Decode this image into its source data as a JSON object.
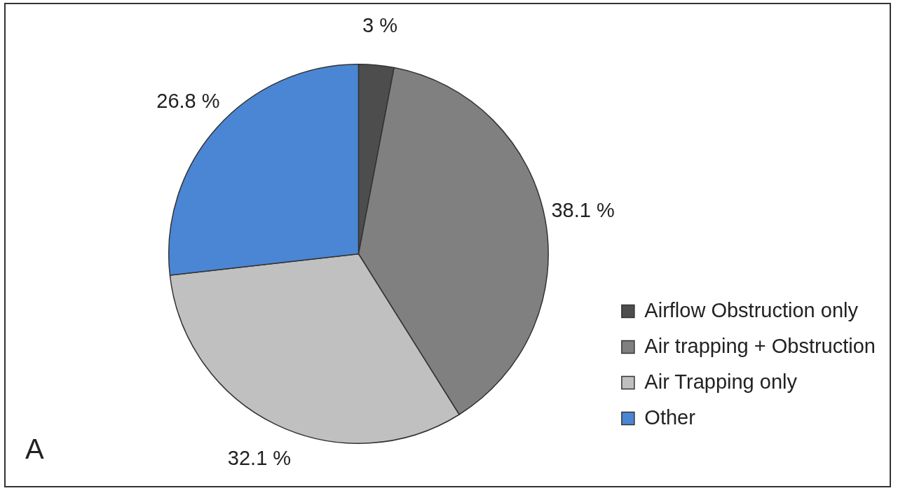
{
  "chart_data": {
    "type": "pie",
    "categories": [
      "Airflow Obstruction only",
      "Air trapping + Obstruction",
      "Air Trapping only",
      "Other"
    ],
    "values": [
      3,
      38.1,
      32.1,
      26.8
    ],
    "colors": [
      "#4d4d4d",
      "#808080",
      "#c0c0c0",
      "#4a86d4"
    ],
    "value_labels": [
      "3 %",
      "38.1 %",
      "32.1 %",
      "26.8 %"
    ],
    "annotations": [
      "A"
    ],
    "legend": "bottom right"
  }
}
